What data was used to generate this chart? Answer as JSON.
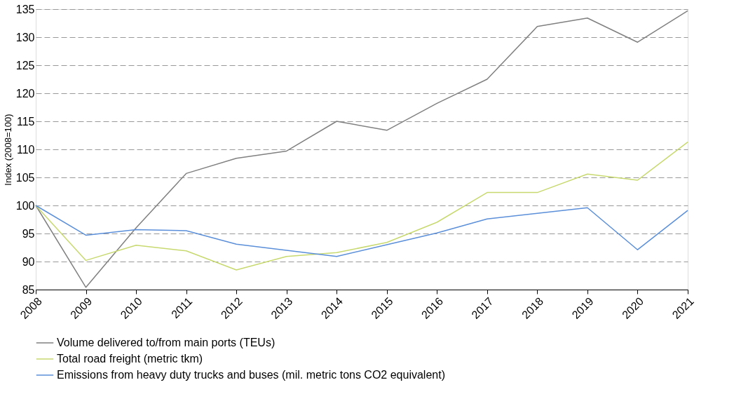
{
  "chart_data": {
    "type": "line",
    "ylabel": "Index (2008=100)",
    "categories": [
      "2008",
      "2009",
      "2010",
      "2011",
      "2012",
      "2013",
      "2014",
      "2015",
      "2016",
      "2017",
      "2018",
      "2019",
      "2020",
      "2021"
    ],
    "series": [
      {
        "name": "Volume delivered to/from main ports (TEUs)",
        "color": "#808080",
        "values": [
          100,
          85.4,
          96,
          105.7,
          108.4,
          109.7,
          115,
          113.4,
          118.2,
          122.5,
          131.9,
          133.4,
          129.1,
          134.7
        ]
      },
      {
        "name": "Total road freight (metric tkm)",
        "color": "#c8d96f",
        "values": [
          100,
          90.2,
          92.9,
          91.9,
          88.5,
          90.9,
          91.6,
          93.4,
          97,
          102.3,
          102.3,
          105.6,
          104.5,
          111.3
        ]
      },
      {
        "name": "Emissions from heavy duty trucks and buses (mil. metric tons CO2 equivalent)",
        "color": "#5b8fd9",
        "values": [
          100,
          94.7,
          95.7,
          95.5,
          93.1,
          92,
          90.9,
          93,
          95.1,
          97.6,
          98.6,
          99.6,
          92.1,
          99.1
        ]
      }
    ],
    "ylim": [
      85,
      135
    ],
    "yticks": [
      85,
      90,
      95,
      100,
      105,
      110,
      115,
      120,
      125,
      130,
      135
    ],
    "grid": "y",
    "legend": "bottom",
    "marker": "none",
    "line_style": "solid"
  }
}
